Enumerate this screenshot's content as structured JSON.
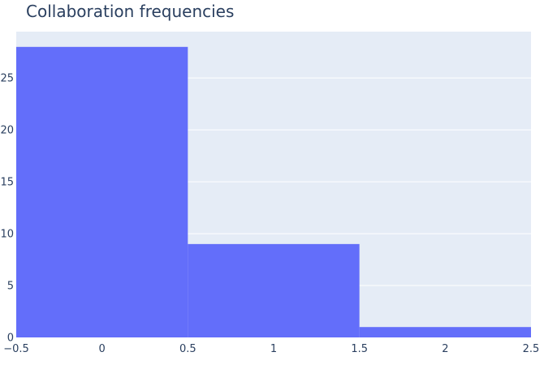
{
  "chart_data": {
    "type": "bar",
    "title": "Collaboration frequencies",
    "xlabel": "",
    "ylabel": "",
    "bins": [
      {
        "start": -0.5,
        "end": 0.5,
        "value": 28
      },
      {
        "start": 0.5,
        "end": 1.5,
        "value": 9
      },
      {
        "start": 1.5,
        "end": 2.5,
        "value": 1
      }
    ],
    "xlim": [
      -0.5,
      2.5
    ],
    "ylim": [
      0,
      29.47
    ],
    "x_ticks": [
      {
        "value": -0.5,
        "label": "−0.5"
      },
      {
        "value": 0,
        "label": "0"
      },
      {
        "value": 0.5,
        "label": "0.5"
      },
      {
        "value": 1,
        "label": "1"
      },
      {
        "value": 1.5,
        "label": "1.5"
      },
      {
        "value": 2,
        "label": "2"
      },
      {
        "value": 2.5,
        "label": "2.5"
      }
    ],
    "y_ticks": [
      {
        "value": 0,
        "label": "0"
      },
      {
        "value": 5,
        "label": "5"
      },
      {
        "value": 10,
        "label": "10"
      },
      {
        "value": 15,
        "label": "15"
      },
      {
        "value": 20,
        "label": "20"
      },
      {
        "value": 25,
        "label": "25"
      }
    ],
    "grid": true,
    "colors": {
      "bar": "#636efa",
      "plot_bg": "#e5ecf6",
      "grid": "#ffffff",
      "text": "#2a3f5f"
    }
  }
}
